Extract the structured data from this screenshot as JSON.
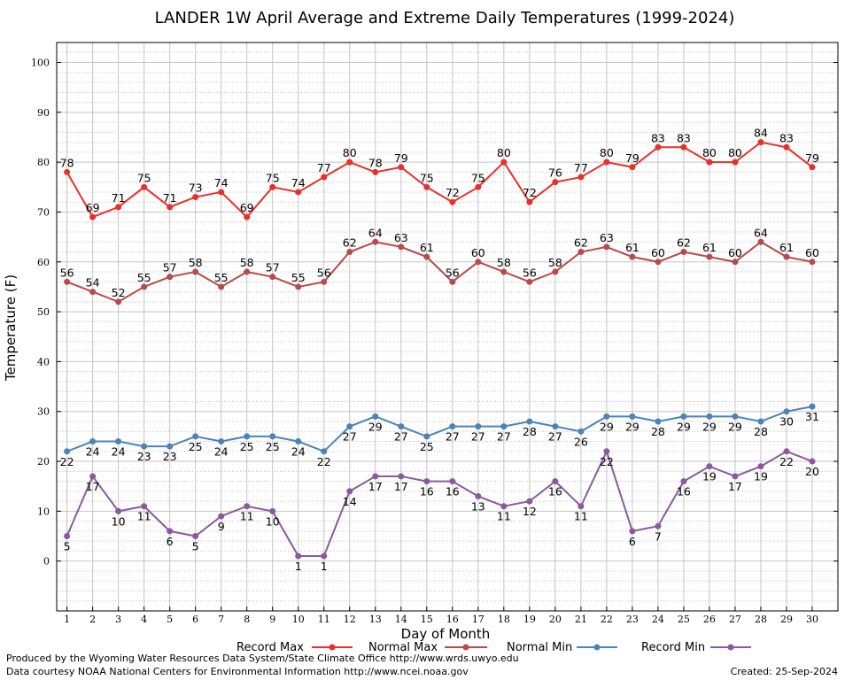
{
  "chart_data": {
    "type": "line",
    "title": "LANDER 1W April Average and Extreme Daily Temperatures (1999-2024)",
    "xlabel": "Day of Month",
    "ylabel": "Temperature (F)",
    "x": [
      1,
      2,
      3,
      4,
      5,
      6,
      7,
      8,
      9,
      10,
      11,
      12,
      13,
      14,
      15,
      16,
      17,
      18,
      19,
      20,
      21,
      22,
      23,
      24,
      25,
      26,
      27,
      28,
      29,
      30
    ],
    "ylim": [
      -10,
      104
    ],
    "xlim": [
      0.6,
      31
    ],
    "yticks": [
      0,
      10,
      20,
      30,
      40,
      50,
      60,
      70,
      80,
      90,
      100
    ],
    "grid": true,
    "legend_position": "bottom",
    "series": [
      {
        "name": "Record Max",
        "color": "#e8302a",
        "values": [
          78,
          69,
          71,
          75,
          71,
          73,
          74,
          69,
          75,
          74,
          77,
          80,
          78,
          79,
          75,
          72,
          75,
          80,
          72,
          76,
          77,
          80,
          79,
          83,
          83,
          80,
          80,
          84,
          83,
          79
        ]
      },
      {
        "name": "Normal Max",
        "color": "#b84a4a",
        "values": [
          56,
          54,
          52,
          55,
          57,
          58,
          55,
          58,
          57,
          55,
          56,
          62,
          64,
          63,
          61,
          56,
          60,
          58,
          56,
          58,
          62,
          63,
          61,
          60,
          62,
          61,
          60,
          64,
          61,
          60
        ]
      },
      {
        "name": "Normal Min",
        "color": "#4a84b8",
        "values": [
          22,
          24,
          24,
          23,
          23,
          25,
          24,
          25,
          25,
          24,
          22,
          27,
          29,
          27,
          25,
          27,
          27,
          27,
          28,
          27,
          26,
          29,
          29,
          28,
          29,
          29,
          29,
          28,
          30,
          31
        ]
      },
      {
        "name": "Record Min",
        "color": "#8a5a9c",
        "values": [
          5,
          17,
          10,
          11,
          6,
          5,
          9,
          11,
          10,
          1,
          1,
          14,
          17,
          17,
          16,
          16,
          13,
          11,
          12,
          16,
          11,
          22,
          6,
          7,
          16,
          19,
          17,
          19,
          22,
          20
        ]
      }
    ]
  },
  "footer": {
    "produced_by": "Produced by the Wyoming Water Resources Data System/State Climate Office http://www.wrds.uwyo.edu",
    "data_courtesy": "Data courtesy NOAA National Centers for Environmental Information http://www.ncei.noaa.gov",
    "created": "Created:  25-Sep-2024"
  }
}
